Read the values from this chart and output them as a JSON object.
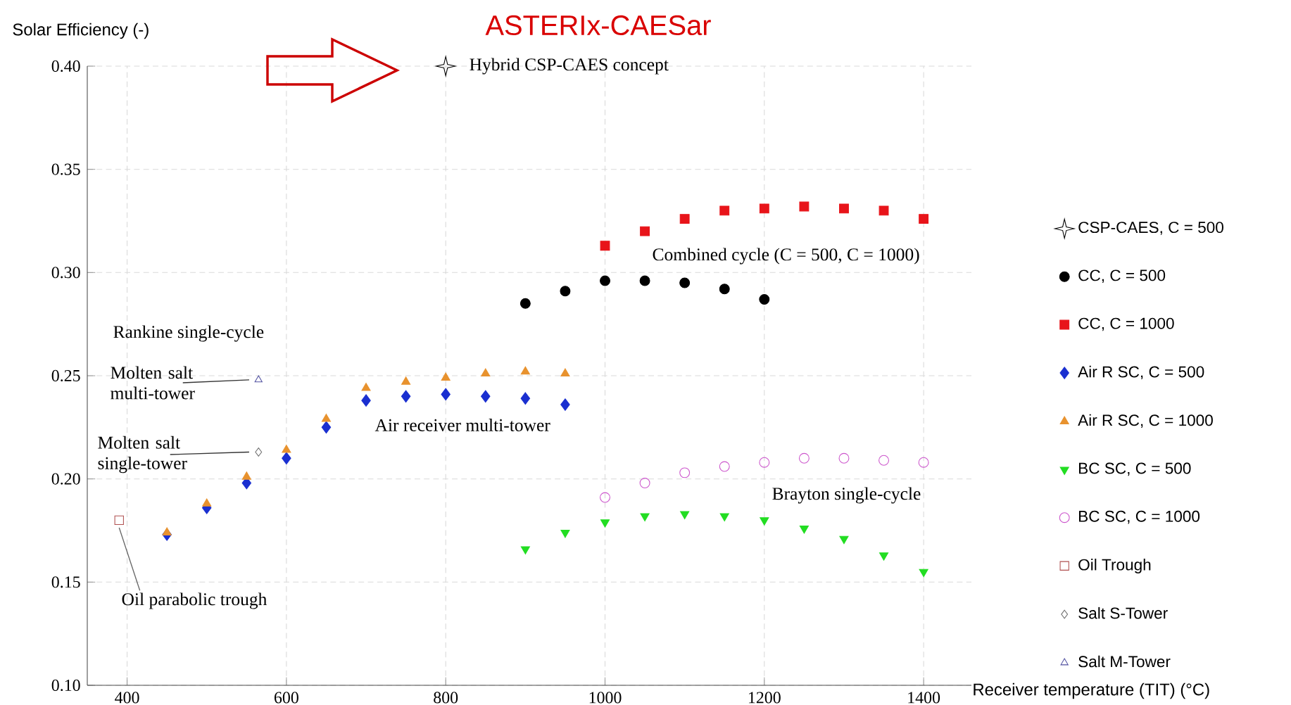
{
  "chart_data": {
    "type": "scatter",
    "title": "ASTERIx-CAESar",
    "xlabel": "Receiver temperature (TIT) (°C)",
    "ylabel": "Solar Efficiency (-)",
    "xlim": [
      350,
      1460
    ],
    "ylim": [
      0.1,
      0.4
    ],
    "xticks": [
      400,
      600,
      800,
      1000,
      1200,
      1400
    ],
    "yticks": [
      {
        "value": 0.1,
        "label": "0.10"
      },
      {
        "value": 0.15,
        "label": "0.15"
      },
      {
        "value": 0.2,
        "label": "0.20"
      },
      {
        "value": 0.25,
        "label": "0.25"
      },
      {
        "value": 0.3,
        "label": "0.30"
      },
      {
        "value": 0.35,
        "label": "0.35"
      },
      {
        "value": 0.4,
        "label": "0.40"
      }
    ],
    "grid": true,
    "legend": "right",
    "series": [
      {
        "name": "CSP-CAES, C = 500",
        "color": "#000000",
        "marker": "star",
        "x": [
          800
        ],
        "values": [
          0.4
        ]
      },
      {
        "name": "CC, C = 500",
        "color": "#000000",
        "marker": "circle",
        "x": [
          900,
          950,
          1000,
          1050,
          1100,
          1150,
          1200
        ],
        "values": [
          0.285,
          0.291,
          0.296,
          0.296,
          0.295,
          0.292,
          0.287
        ]
      },
      {
        "name": "CC, C = 1000",
        "color": "#e8141a",
        "marker": "square",
        "x": [
          1000,
          1050,
          1100,
          1150,
          1200,
          1250,
          1300,
          1350,
          1400
        ],
        "values": [
          0.313,
          0.32,
          0.326,
          0.33,
          0.331,
          0.332,
          0.331,
          0.33,
          0.326
        ]
      },
      {
        "name": "Air R SC, C = 500",
        "color": "#1a2fd0",
        "marker": "diamond",
        "x": [
          450,
          500,
          550,
          600,
          650,
          700,
          750,
          800,
          850,
          900,
          950
        ],
        "values": [
          0.173,
          0.186,
          0.198,
          0.21,
          0.225,
          0.238,
          0.24,
          0.241,
          0.24,
          0.239,
          0.236
        ]
      },
      {
        "name": "Air R SC, C = 1000",
        "color": "#e8922e",
        "marker": "triangle",
        "x": [
          450,
          500,
          550,
          600,
          650,
          700,
          750,
          800,
          850,
          900,
          950
        ],
        "values": [
          0.174,
          0.188,
          0.201,
          0.214,
          0.229,
          0.244,
          0.247,
          0.249,
          0.251,
          0.252,
          0.251
        ]
      },
      {
        "name": "BC SC, C = 500",
        "color": "#22dd22",
        "marker": "triangle-down",
        "x": [
          900,
          950,
          1000,
          1050,
          1100,
          1150,
          1200,
          1250,
          1300,
          1350,
          1400
        ],
        "values": [
          0.166,
          0.174,
          0.179,
          0.182,
          0.183,
          0.182,
          0.18,
          0.176,
          0.171,
          0.163,
          0.155
        ]
      },
      {
        "name": "BC SC, C = 1000",
        "color": "#cc55cc",
        "marker": "circle-open",
        "x": [
          1000,
          1050,
          1100,
          1150,
          1200,
          1250,
          1300,
          1350,
          1400
        ],
        "values": [
          0.191,
          0.198,
          0.203,
          0.206,
          0.208,
          0.21,
          0.21,
          0.209,
          0.208
        ]
      },
      {
        "name": "Oil Trough",
        "color": "#b05050",
        "marker": "square-open",
        "x": [
          390
        ],
        "values": [
          0.18
        ]
      },
      {
        "name": "Salt S-Tower",
        "color": "#707070",
        "marker": "diamond-open",
        "x": [
          565
        ],
        "values": [
          0.213
        ]
      },
      {
        "name": "Salt M-Tower",
        "color": "#5050a0",
        "marker": "triangle-open",
        "x": [
          565
        ],
        "values": [
          0.248
        ]
      }
    ],
    "annotations": [
      {
        "text": "Hybrid CSP-CAES concept",
        "x": 800,
        "y": 0.4
      },
      "Combined cycle (C = 500, C = 1000)",
      "Rankine single-cycle",
      {
        "text": "Molten salt multi-tower",
        "x": 565,
        "y": 0.248
      },
      {
        "text": "Molten salt single-tower",
        "x": 565,
        "y": 0.213
      },
      "Air receiver multi-tower",
      "Brayton single-cycle",
      {
        "text": "Oil parabolic trough",
        "x": 390,
        "y": 0.18
      }
    ]
  }
}
